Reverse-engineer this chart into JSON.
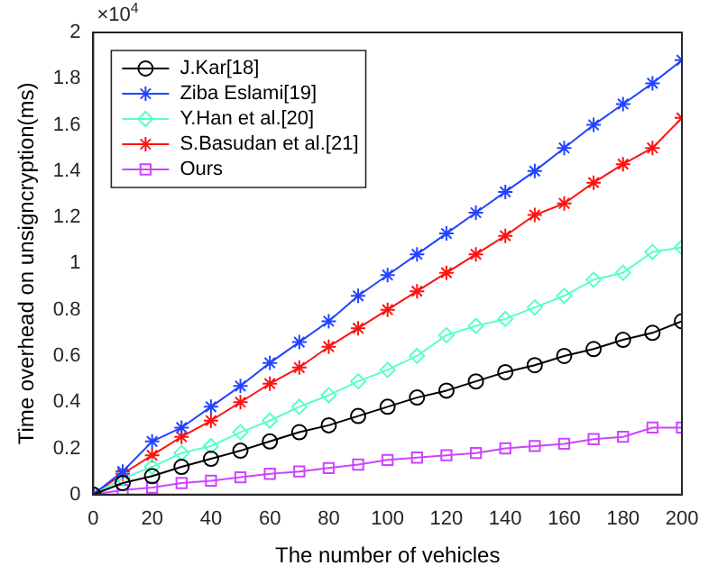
{
  "chart_data": {
    "type": "line",
    "xlabel": "The number of vehicles",
    "ylabel": "Time overhead on unsigncryption(ms)",
    "annotations": [
      "×10$^{4}$"
    ],
    "x": [
      0,
      10,
      20,
      30,
      40,
      50,
      60,
      70,
      80,
      90,
      100,
      110,
      120,
      130,
      140,
      150,
      160,
      170,
      180,
      190,
      200
    ],
    "xlim": [
      0,
      200
    ],
    "xticks": [
      0,
      20,
      40,
      60,
      80,
      100,
      120,
      140,
      160,
      180,
      200
    ],
    "ylim": [
      0,
      2
    ],
    "yticks": [
      0,
      0.2,
      0.4,
      0.6,
      0.8,
      1,
      1.2,
      1.4,
      1.6,
      1.8,
      2
    ],
    "grid": false,
    "legend": "top left",
    "line_style": "solid",
    "series": [
      {
        "name": "J.Kar[18]",
        "color": "#000000",
        "marker": "circle",
        "values": [
          0,
          0.05,
          0.08,
          0.12,
          0.155,
          0.19,
          0.23,
          0.27,
          0.3,
          0.34,
          0.38,
          0.42,
          0.45,
          0.49,
          0.53,
          0.56,
          0.6,
          0.63,
          0.67,
          0.7,
          0.75
        ]
      },
      {
        "name": "Ziba Eslami[19]",
        "color": "#2244ff",
        "marker": "cross",
        "values": [
          0,
          0.1,
          0.23,
          0.29,
          0.38,
          0.47,
          0.57,
          0.66,
          0.75,
          0.86,
          0.95,
          1.04,
          1.13,
          1.22,
          1.31,
          1.4,
          1.5,
          1.6,
          1.69,
          1.78,
          1.88
        ]
      },
      {
        "name": "Y.Han et al.[20]",
        "color": "#55ffcc",
        "marker": "diamond",
        "values": [
          0,
          0.07,
          0.12,
          0.18,
          0.21,
          0.27,
          0.32,
          0.38,
          0.43,
          0.49,
          0.54,
          0.6,
          0.69,
          0.73,
          0.76,
          0.81,
          0.86,
          0.93,
          0.96,
          1.05,
          1.07
        ]
      },
      {
        "name": "S.Basudan et al.[21]",
        "color": "#ff1111",
        "marker": "cross",
        "values": [
          0,
          0.09,
          0.17,
          0.25,
          0.32,
          0.4,
          0.48,
          0.55,
          0.64,
          0.72,
          0.8,
          0.88,
          0.96,
          1.04,
          1.12,
          1.21,
          1.26,
          1.35,
          1.43,
          1.5,
          1.63
        ]
      },
      {
        "name": "Ours",
        "color": "#cc44ff",
        "marker": "square",
        "values": [
          0,
          0.02,
          0.03,
          0.05,
          0.06,
          0.075,
          0.09,
          0.1,
          0.115,
          0.13,
          0.15,
          0.16,
          0.17,
          0.18,
          0.2,
          0.21,
          0.22,
          0.24,
          0.25,
          0.29,
          0.29
        ]
      }
    ]
  }
}
